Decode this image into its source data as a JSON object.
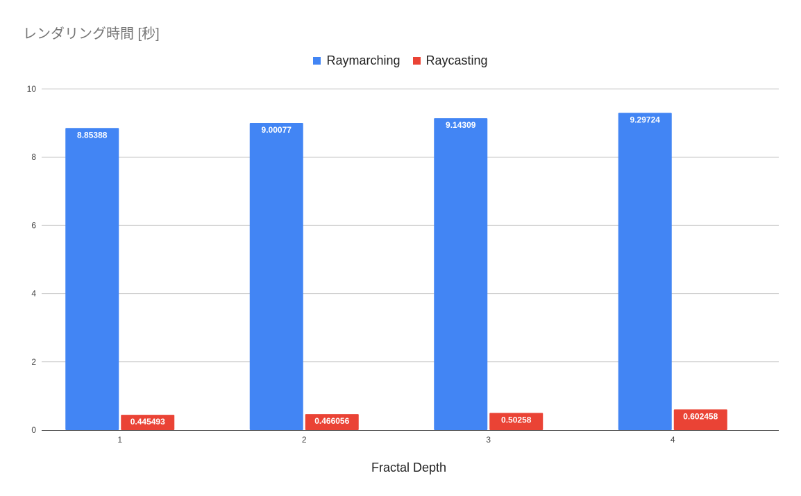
{
  "chart_data": {
    "type": "bar",
    "title": "レンダリング時間 [秒]",
    "xlabel": "Fractal Depth",
    "ylabel": "",
    "categories": [
      "1",
      "2",
      "3",
      "4"
    ],
    "series": [
      {
        "name": "Raymarching",
        "color": "#4285f4",
        "values": [
          8.85388,
          9.00077,
          9.14309,
          9.29724
        ],
        "labels": [
          "8.85388",
          "9.00077",
          "9.14309",
          "9.29724"
        ]
      },
      {
        "name": "Raycasting",
        "color": "#ea4335",
        "values": [
          0.445493,
          0.466056,
          0.50258,
          0.602458
        ],
        "labels": [
          "0.445493",
          "0.466056",
          "0.50258",
          "0.602458"
        ]
      }
    ],
    "ylim": [
      0,
      10
    ],
    "yticks": [
      0,
      2,
      4,
      6,
      8,
      10
    ],
    "grid": true,
    "legend": "top-center"
  }
}
